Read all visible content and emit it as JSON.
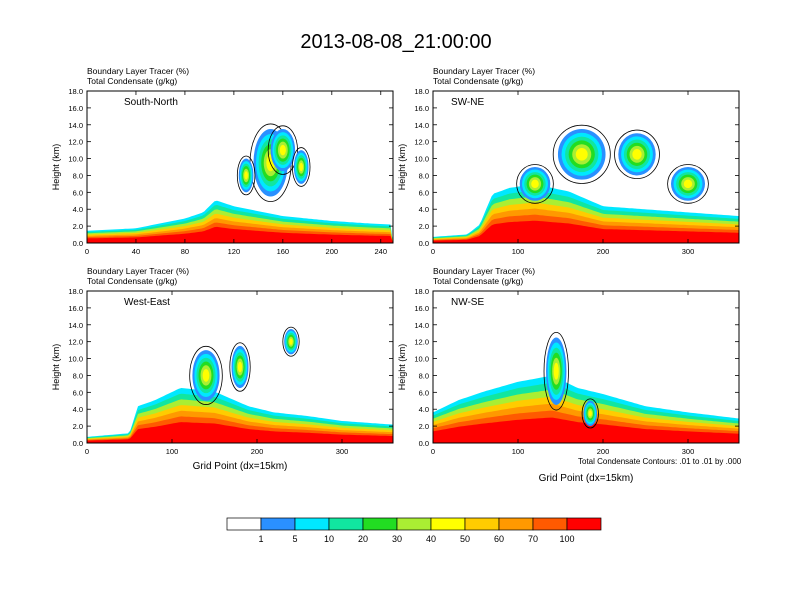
{
  "title": "2013-08-08_21:00:00",
  "footnote": "Total Condensate Contours: .01 to .01 by .000",
  "colors": {
    "contour_line": "#000000",
    "fill_bins": [
      "#ffffff",
      "#2a90ff",
      "#00e8ff",
      "#11e6a0",
      "#22dd22",
      "#aaee33",
      "#ffff00",
      "#ffcc00",
      "#ff9900",
      "#ff5a00",
      "#ff0000"
    ]
  },
  "colorbar": {
    "labels": [
      "1",
      "5",
      "10",
      "20",
      "30",
      "40",
      "50",
      "60",
      "70",
      "100"
    ]
  },
  "chart_data": [
    {
      "type": "heatmap",
      "panel_label": "South-North",
      "header": [
        "Boundary Layer Tracer   (%)",
        "Total Condensate   (g/kg)"
      ],
      "ylabel": "Height (km)",
      "xlabel": "",
      "xlim": [
        0,
        250
      ],
      "ylim": [
        0,
        18
      ],
      "xticks": [
        "0",
        "40",
        "80",
        "120",
        "160",
        "200",
        "240"
      ],
      "xtick_values": [
        0,
        40,
        80,
        120,
        160,
        200,
        240
      ],
      "yticks": [
        "0.0",
        "2.0",
        "4.0",
        "6.0",
        "8.0",
        "10.0",
        "12.0",
        "14.0",
        "16.0",
        "18.0"
      ],
      "boundary_layer": [
        [
          0,
          1.0
        ],
        [
          40,
          1.2
        ],
        [
          60,
          1.6
        ],
        [
          80,
          2.0
        ],
        [
          95,
          2.5
        ],
        [
          105,
          3.5
        ],
        [
          120,
          3.0
        ],
        [
          140,
          2.6
        ],
        [
          160,
          2.2
        ],
        [
          200,
          1.8
        ],
        [
          230,
          1.6
        ],
        [
          250,
          1.5
        ]
      ],
      "cloud_cores": [
        [
          150,
          9.5,
          14,
          4
        ],
        [
          160,
          11,
          10,
          2.5
        ],
        [
          130,
          8,
          6,
          2
        ],
        [
          175,
          9,
          6,
          2
        ]
      ]
    },
    {
      "type": "heatmap",
      "panel_label": "SW-NE",
      "header": [
        "Boundary Layer Tracer   (%)",
        "Total Condensate   (g/kg)"
      ],
      "ylabel": "Height (km)",
      "xlabel": "",
      "xlim": [
        0,
        360
      ],
      "ylim": [
        0,
        18
      ],
      "xticks": [
        "0",
        "100",
        "200",
        "300"
      ],
      "xtick_values": [
        0,
        100,
        200,
        300
      ],
      "yticks": [
        "0.0",
        "2.0",
        "4.0",
        "6.0",
        "8.0",
        "10.0",
        "12.0",
        "14.0",
        "16.0",
        "18.0"
      ],
      "boundary_layer": [
        [
          0,
          0.5
        ],
        [
          40,
          0.7
        ],
        [
          55,
          1.5
        ],
        [
          70,
          4.0
        ],
        [
          90,
          4.5
        ],
        [
          120,
          4.8
        ],
        [
          160,
          4.2
        ],
        [
          200,
          3.0
        ],
        [
          240,
          2.8
        ],
        [
          280,
          2.6
        ],
        [
          320,
          2.4
        ],
        [
          360,
          2.2
        ]
      ],
      "cloud_cores": [
        [
          175,
          10.5,
          28,
          3
        ],
        [
          240,
          10.5,
          22,
          2.5
        ],
        [
          120,
          7,
          18,
          2
        ],
        [
          300,
          7,
          20,
          2
        ]
      ]
    },
    {
      "type": "heatmap",
      "panel_label": "West-East",
      "header": [
        "Boundary Layer Tracer   (%)",
        "Total Condensate   (g/kg)"
      ],
      "ylabel": "Height (km)",
      "xlabel": "Grid Point (dx=15km)",
      "xlim": [
        0,
        360
      ],
      "ylim": [
        0,
        18
      ],
      "xticks": [
        "0",
        "100",
        "200",
        "300"
      ],
      "xtick_values": [
        0,
        100,
        200,
        300
      ],
      "yticks": [
        "0.0",
        "2.0",
        "4.0",
        "6.0",
        "8.0",
        "10.0",
        "12.0",
        "14.0",
        "16.0",
        "18.0"
      ],
      "boundary_layer": [
        [
          0,
          0.5
        ],
        [
          50,
          0.8
        ],
        [
          60,
          3.0
        ],
        [
          80,
          3.5
        ],
        [
          110,
          4.5
        ],
        [
          150,
          4.2
        ],
        [
          190,
          3.0
        ],
        [
          220,
          2.5
        ],
        [
          260,
          2.2
        ],
        [
          300,
          1.8
        ],
        [
          360,
          1.5
        ]
      ],
      "cloud_cores": [
        [
          140,
          8,
          16,
          3
        ],
        [
          180,
          9,
          10,
          2.5
        ],
        [
          240,
          12,
          8,
          1.5
        ]
      ]
    },
    {
      "type": "heatmap",
      "panel_label": "NW-SE",
      "header": [
        "Boundary Layer Tracer   (%)",
        "Total Condensate   (g/kg)"
      ],
      "ylabel": "Height (km)",
      "xlabel": "Grid Point (dx=15km)",
      "xlim": [
        0,
        360
      ],
      "ylim": [
        0,
        18
      ],
      "xticks": [
        "0",
        "100",
        "200",
        "300"
      ],
      "xtick_values": [
        0,
        100,
        200,
        300
      ],
      "yticks": [
        "0.0",
        "2.0",
        "4.0",
        "6.0",
        "8.0",
        "10.0",
        "12.0",
        "14.0",
        "16.0",
        "18.0"
      ],
      "boundary_layer": [
        [
          0,
          2.5
        ],
        [
          30,
          3.5
        ],
        [
          60,
          4.2
        ],
        [
          100,
          5.0
        ],
        [
          140,
          5.5
        ],
        [
          170,
          4.5
        ],
        [
          200,
          4.0
        ],
        [
          250,
          3.0
        ],
        [
          300,
          2.5
        ],
        [
          360,
          2.0
        ]
      ],
      "cloud_cores": [
        [
          145,
          8.5,
          12,
          4
        ],
        [
          185,
          3.5,
          8,
          1.5
        ]
      ]
    }
  ]
}
